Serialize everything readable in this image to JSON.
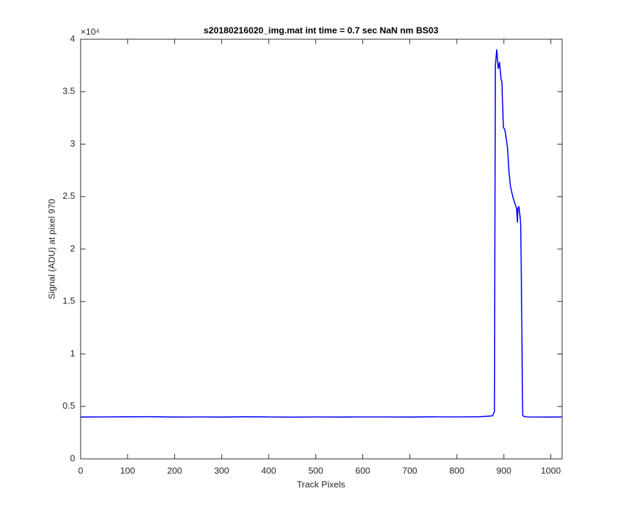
{
  "chart_data": {
    "type": "line",
    "title": "s20180216020_img.mat int time = 0.7 sec  NaN nm BS03",
    "x_label": "Track Pixels",
    "y_label": "Signal (ADU) at pixel 970",
    "y_multiplier": "×10⁴",
    "xlim": [
      0,
      1024
    ],
    "ylim": [
      0,
      40000
    ],
    "xticks": [
      0,
      100,
      200,
      300,
      400,
      500,
      600,
      700,
      800,
      900,
      1000
    ],
    "yticks": [
      0,
      {
        "value": 5000,
        "label": "0.5"
      },
      {
        "value": 10000,
        "label": "1"
      },
      {
        "value": 15000,
        "label": "1.5"
      },
      {
        "value": 20000,
        "label": "2"
      },
      {
        "value": 25000,
        "label": "2.5"
      },
      {
        "value": 30000,
        "label": "3"
      },
      {
        "value": 35000,
        "label": "3.5"
      },
      {
        "value": 40000,
        "label": "4"
      }
    ],
    "grid": false,
    "series": [
      {
        "color": "#0000ff",
        "x": [
          0,
          50,
          100,
          150,
          200,
          250,
          300,
          350,
          400,
          450,
          500,
          550,
          600,
          650,
          700,
          750,
          800,
          850,
          876,
          880,
          882,
          885,
          888,
          891,
          894,
          896,
          899,
          902,
          905,
          908,
          911,
          914,
          919,
          923,
          927,
          929,
          930,
          932,
          935,
          936,
          938,
          940,
          942,
          950,
          1000,
          1024
        ],
        "values": [
          3990,
          4000,
          4010,
          4020,
          3990,
          4000,
          3990,
          4010,
          4000,
          3980,
          4000,
          3990,
          4000,
          4000,
          3990,
          4010,
          4000,
          4020,
          4100,
          4500,
          37500,
          39000,
          37200,
          37800,
          36200,
          35900,
          31600,
          31400,
          30600,
          29600,
          27300,
          26000,
          25000,
          24400,
          23900,
          22560,
          23900,
          24060,
          22900,
          22100,
          14200,
          4200,
          4050,
          4000,
          3990,
          4000
        ]
      }
    ]
  }
}
